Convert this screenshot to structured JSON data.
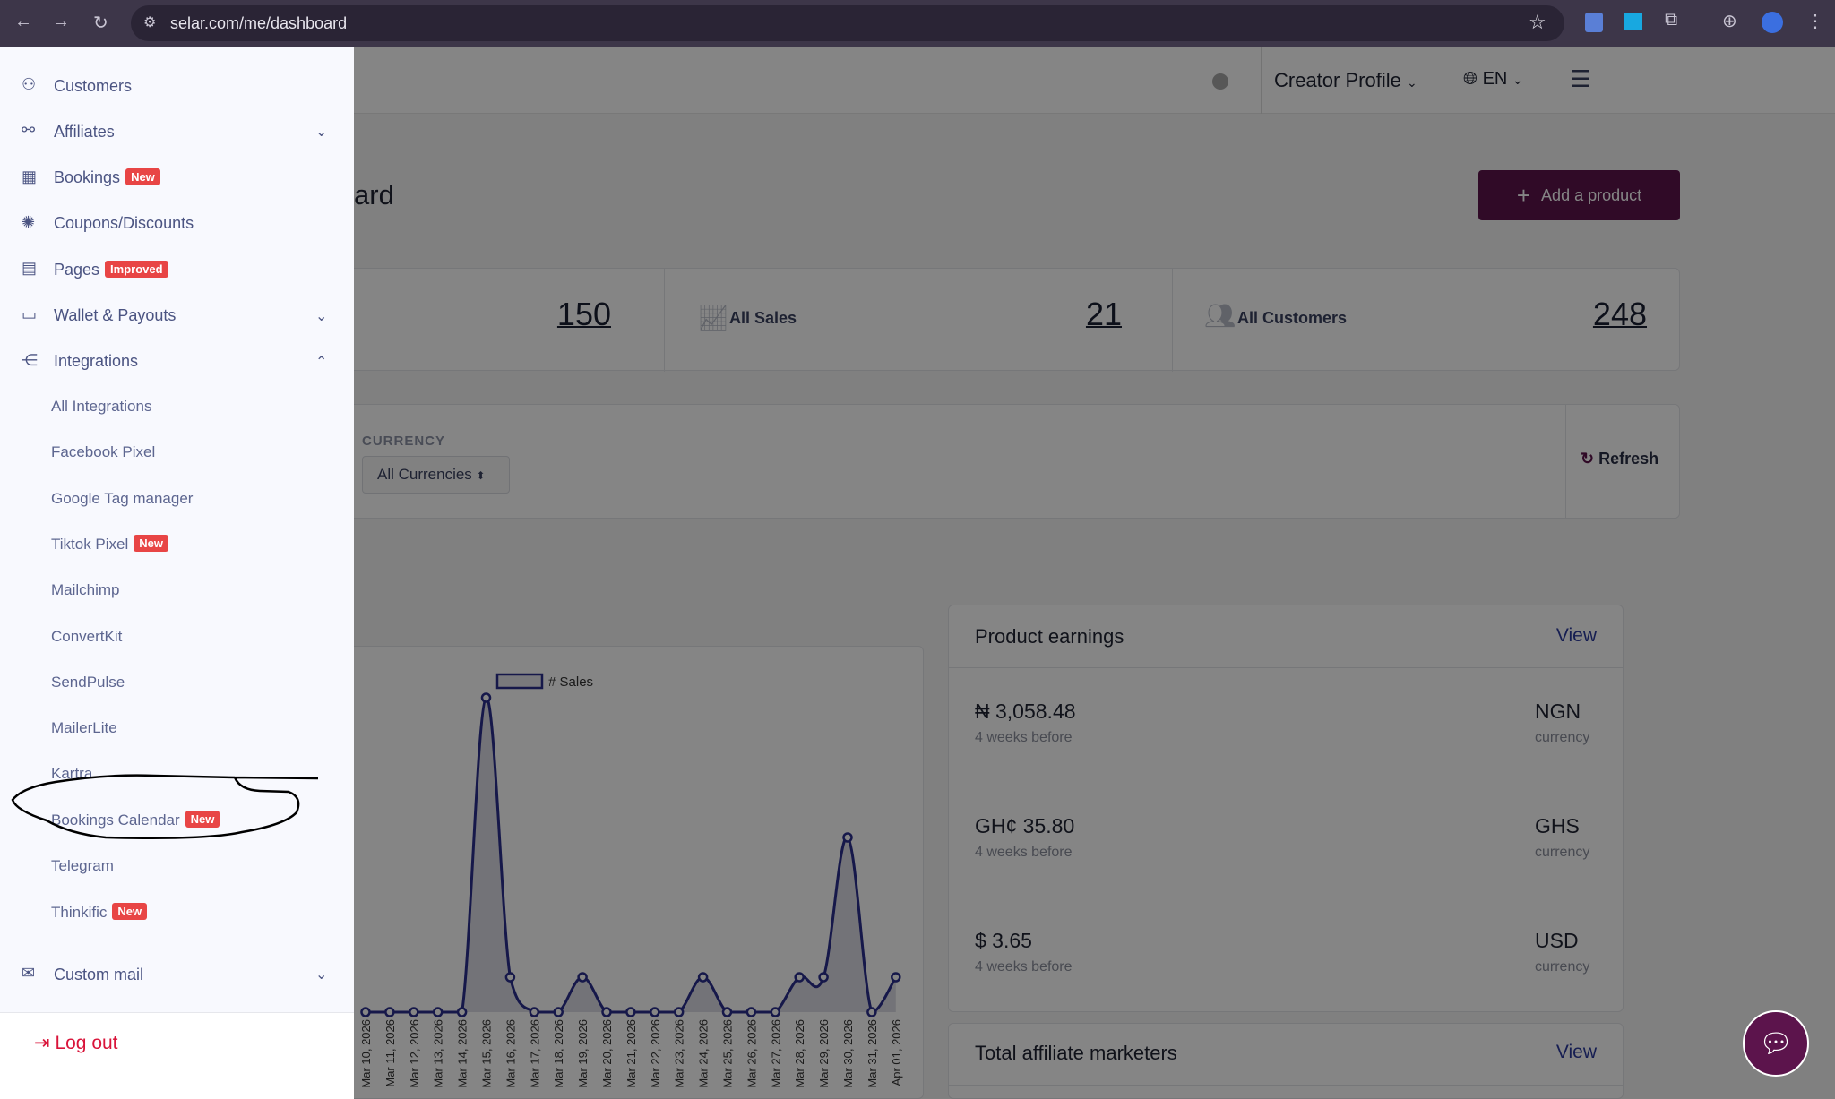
{
  "browser": {
    "url": "selar.com/me/dashboard"
  },
  "header": {
    "profile_label": "Creator Profile",
    "language": "EN"
  },
  "page": {
    "title_fragment": "ard",
    "add_product": "Add a product"
  },
  "stats": [
    {
      "label": "",
      "value": "150"
    },
    {
      "label": "All Sales",
      "value": "21"
    },
    {
      "label": "All Customers",
      "value": "248"
    }
  ],
  "filters": {
    "currency_label": "CURRENCY",
    "currency_value": "All Currencies",
    "refresh": "Refresh"
  },
  "sidebar": {
    "items": [
      {
        "label": "Customers",
        "icon": "customers-icon"
      },
      {
        "label": "Affiliates",
        "icon": "affiliates-icon",
        "chevron": "down"
      },
      {
        "label": "Bookings",
        "icon": "calendar-icon",
        "badge": "New"
      },
      {
        "label": "Coupons/Discounts",
        "icon": "coupon-icon"
      },
      {
        "label": "Pages",
        "icon": "pages-icon",
        "badge": "Improved"
      },
      {
        "label": "Wallet & Payouts",
        "icon": "wallet-icon",
        "chevron": "down"
      },
      {
        "label": "Integrations",
        "icon": "integrations-icon",
        "chevron": "up"
      }
    ],
    "sub_items": [
      {
        "label": "All Integrations"
      },
      {
        "label": "Facebook Pixel"
      },
      {
        "label": "Google Tag manager"
      },
      {
        "label": "Tiktok Pixel",
        "badge": "New"
      },
      {
        "label": "Mailchimp"
      },
      {
        "label": "ConvertKit"
      },
      {
        "label": "SendPulse"
      },
      {
        "label": "MailerLite"
      },
      {
        "label": "Kartra"
      },
      {
        "label": "Bookings Calendar",
        "badge": "New"
      },
      {
        "label": "Telegram"
      },
      {
        "label": "Thinkific",
        "badge": "New"
      }
    ],
    "custom_mail": "Custom mail",
    "logout": "Log out"
  },
  "product_earnings": {
    "title": "Product earnings",
    "view": "View",
    "rows": [
      {
        "amount": "₦ 3,058.48",
        "sub": "4 weeks before",
        "currency": "NGN",
        "currency_sub": "currency"
      },
      {
        "amount": "GH¢ 35.80",
        "sub": "4 weeks before",
        "currency": "GHS",
        "currency_sub": "currency"
      },
      {
        "amount": "$ 3.65",
        "sub": "4 weeks before",
        "currency": "USD",
        "currency_sub": "currency"
      }
    ]
  },
  "affiliates_card": {
    "title": "Total affiliate marketers",
    "view": "View"
  },
  "colors": {
    "brand": "#5c144c",
    "badge": "#e84545",
    "line": "#2b2f8f",
    "logout": "#d9143a"
  },
  "chart_data": {
    "type": "line",
    "legend": "# Sales",
    "x": [
      "Mar 10, 2026",
      "Mar 11, 2026",
      "Mar 12, 2026",
      "Mar 13, 2026",
      "Mar 14, 2026",
      "Mar 15, 2026",
      "Mar 16, 2026",
      "Mar 17, 2026",
      "Mar 18, 2026",
      "Mar 19, 2026",
      "Mar 20, 2026",
      "Mar 21, 2026",
      "Mar 22, 2026",
      "Mar 23, 2026",
      "Mar 24, 2026",
      "Mar 25, 2026",
      "Mar 26, 2026",
      "Mar 27, 2026",
      "Mar 28, 2026",
      "Mar 29, 2026",
      "Mar 30, 2026",
      "Mar 31, 2026",
      "Apr 01, 2026"
    ],
    "values": [
      0,
      0,
      0,
      0,
      0,
      9,
      1,
      0,
      0,
      1,
      0,
      0,
      0,
      0,
      1,
      0,
      0,
      0,
      1,
      1,
      5,
      0,
      1
    ]
  }
}
